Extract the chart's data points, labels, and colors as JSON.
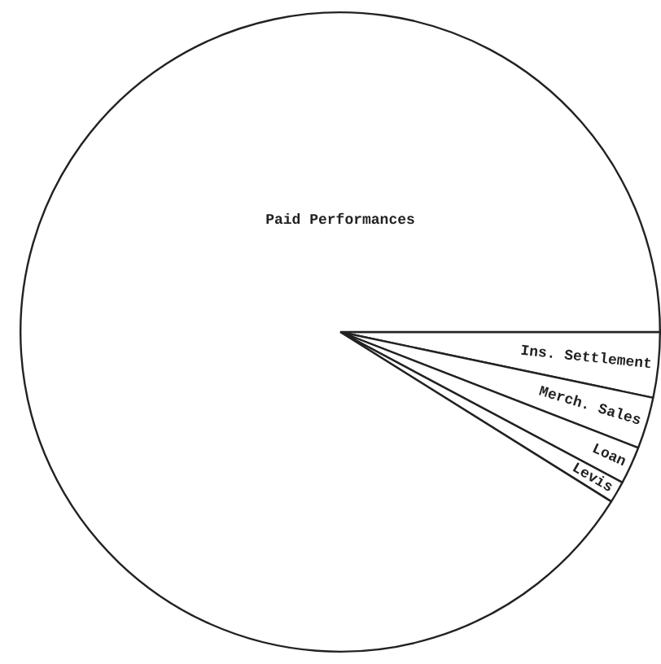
{
  "chart_data": {
    "type": "pie",
    "categories": [
      "Ins. Settlement",
      "Merch. Sales",
      "Loan",
      "Levis",
      "Paid Performances"
    ],
    "values": [
      3.3,
      2.6,
      1.9,
      1.1,
      91.1
    ],
    "colors": [
      "#ffffff",
      "#ffffff",
      "#ffffff",
      "#ffffff",
      "#ffffff"
    ],
    "legend": false,
    "data_labels": false
  }
}
